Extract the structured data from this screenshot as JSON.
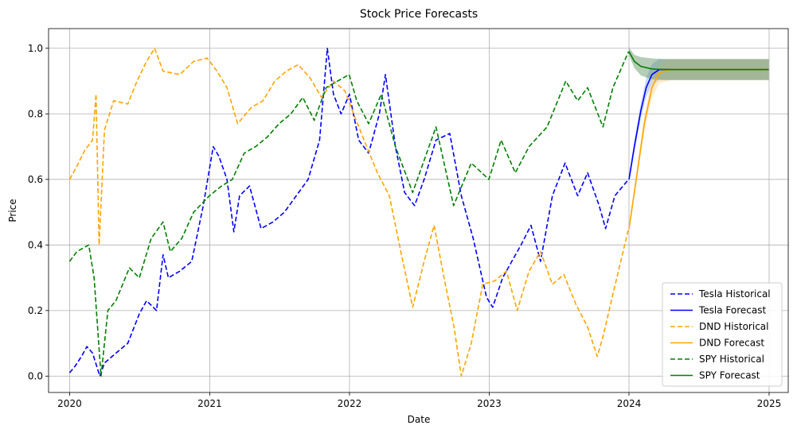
{
  "chart_data": {
    "type": "line",
    "title": "Stock Price Forecasts",
    "xlabel": "Date",
    "ylabel": "Price",
    "xlim": [
      "2019-11-07",
      "2025-02-20"
    ],
    "ylim": [
      -0.05,
      1.06
    ],
    "x_ticks": [
      "2020",
      "2021",
      "2022",
      "2023",
      "2024",
      "2025"
    ],
    "y_ticks": [
      "0.0",
      "0.2",
      "0.4",
      "0.6",
      "0.8",
      "1.0"
    ],
    "grid": true,
    "legend_position": "bottom-right",
    "series": [
      {
        "name": "Tesla Historical",
        "color": "#0000ff",
        "style": "dashed",
        "points": [
          [
            "2020-01-01",
            0.01
          ],
          [
            "2020-01-15",
            0.03
          ],
          [
            "2020-02-01",
            0.06
          ],
          [
            "2020-02-15",
            0.09
          ],
          [
            "2020-03-01",
            0.07
          ],
          [
            "2020-03-20",
            0.0
          ],
          [
            "2020-04-01",
            0.04
          ],
          [
            "2020-05-01",
            0.07
          ],
          [
            "2020-06-01",
            0.1
          ],
          [
            "2020-07-01",
            0.19
          ],
          [
            "2020-07-20",
            0.23
          ],
          [
            "2020-08-15",
            0.2
          ],
          [
            "2020-09-01",
            0.37
          ],
          [
            "2020-09-15",
            0.3
          ],
          [
            "2020-10-15",
            0.32
          ],
          [
            "2020-11-15",
            0.35
          ],
          [
            "2020-12-15",
            0.52
          ],
          [
            "2021-01-10",
            0.7
          ],
          [
            "2021-01-25",
            0.67
          ],
          [
            "2021-02-15",
            0.6
          ],
          [
            "2021-03-05",
            0.44
          ],
          [
            "2021-03-20",
            0.55
          ],
          [
            "2021-04-15",
            0.58
          ],
          [
            "2021-05-15",
            0.45
          ],
          [
            "2021-06-15",
            0.47
          ],
          [
            "2021-07-15",
            0.5
          ],
          [
            "2021-08-15",
            0.55
          ],
          [
            "2021-09-15",
            0.6
          ],
          [
            "2021-10-15",
            0.72
          ],
          [
            "2021-11-04",
            1.0
          ],
          [
            "2021-11-20",
            0.86
          ],
          [
            "2021-12-10",
            0.8
          ],
          [
            "2022-01-01",
            0.86
          ],
          [
            "2022-01-25",
            0.72
          ],
          [
            "2022-02-20",
            0.68
          ],
          [
            "2022-03-20",
            0.8
          ],
          [
            "2022-04-05",
            0.92
          ],
          [
            "2022-05-01",
            0.7
          ],
          [
            "2022-05-25",
            0.56
          ],
          [
            "2022-06-20",
            0.52
          ],
          [
            "2022-07-15",
            0.6
          ],
          [
            "2022-08-15",
            0.72
          ],
          [
            "2022-09-20",
            0.74
          ],
          [
            "2022-10-20",
            0.55
          ],
          [
            "2022-11-20",
            0.42
          ],
          [
            "2022-12-25",
            0.24
          ],
          [
            "2023-01-10",
            0.21
          ],
          [
            "2023-02-05",
            0.3
          ],
          [
            "2023-03-01",
            0.35
          ],
          [
            "2023-03-25",
            0.4
          ],
          [
            "2023-04-20",
            0.46
          ],
          [
            "2023-05-15",
            0.35
          ],
          [
            "2023-06-15",
            0.55
          ],
          [
            "2023-07-18",
            0.65
          ],
          [
            "2023-08-20",
            0.55
          ],
          [
            "2023-09-15",
            0.62
          ],
          [
            "2023-10-15",
            0.52
          ],
          [
            "2023-11-01",
            0.45
          ],
          [
            "2023-11-25",
            0.55
          ],
          [
            "2023-12-31",
            0.6
          ]
        ]
      },
      {
        "name": "Tesla Forecast",
        "color": "#0000ff",
        "style": "solid",
        "points": [
          [
            "2024-01-01",
            0.6
          ],
          [
            "2024-01-15",
            0.7
          ],
          [
            "2024-02-01",
            0.81
          ],
          [
            "2024-02-15",
            0.88
          ],
          [
            "2024-03-01",
            0.92
          ],
          [
            "2024-03-20",
            0.935
          ],
          [
            "2024-04-15",
            0.935
          ],
          [
            "2024-12-31",
            0.935
          ]
        ],
        "band_color": "#87aaf0"
      },
      {
        "name": "DND Historical",
        "color": "#ffa500",
        "style": "dashed",
        "points": [
          [
            "2020-01-01",
            0.6
          ],
          [
            "2020-01-20",
            0.64
          ],
          [
            "2020-02-10",
            0.69
          ],
          [
            "2020-03-01",
            0.72
          ],
          [
            "2020-03-10",
            0.86
          ],
          [
            "2020-03-18",
            0.4
          ],
          [
            "2020-04-01",
            0.75
          ],
          [
            "2020-04-25",
            0.84
          ],
          [
            "2020-06-01",
            0.83
          ],
          [
            "2020-06-25",
            0.9
          ],
          [
            "2020-07-20",
            0.96
          ],
          [
            "2020-08-10",
            1.0
          ],
          [
            "2020-09-01",
            0.93
          ],
          [
            "2020-10-15",
            0.92
          ],
          [
            "2020-11-20",
            0.96
          ],
          [
            "2020-12-25",
            0.97
          ],
          [
            "2021-01-20",
            0.93
          ],
          [
            "2021-02-15",
            0.88
          ],
          [
            "2021-03-15",
            0.77
          ],
          [
            "2021-04-20",
            0.82
          ],
          [
            "2021-05-20",
            0.84
          ],
          [
            "2021-06-20",
            0.9
          ],
          [
            "2021-07-20",
            0.93
          ],
          [
            "2021-08-20",
            0.95
          ],
          [
            "2021-09-20",
            0.91
          ],
          [
            "2021-10-20",
            0.85
          ],
          [
            "2021-11-20",
            0.9
          ],
          [
            "2021-12-20",
            0.87
          ],
          [
            "2022-01-15",
            0.79
          ],
          [
            "2022-02-15",
            0.7
          ],
          [
            "2022-03-15",
            0.62
          ],
          [
            "2022-04-15",
            0.55
          ],
          [
            "2022-05-15",
            0.38
          ],
          [
            "2022-06-15",
            0.21
          ],
          [
            "2022-07-15",
            0.35
          ],
          [
            "2022-08-10",
            0.46
          ],
          [
            "2022-09-05",
            0.3
          ],
          [
            "2022-10-01",
            0.15
          ],
          [
            "2022-10-20",
            0.0
          ],
          [
            "2022-11-15",
            0.1
          ],
          [
            "2022-12-15",
            0.28
          ],
          [
            "2023-01-15",
            0.29
          ],
          [
            "2023-02-15",
            0.32
          ],
          [
            "2023-03-15",
            0.2
          ],
          [
            "2023-04-15",
            0.32
          ],
          [
            "2023-05-15",
            0.38
          ],
          [
            "2023-06-15",
            0.28
          ],
          [
            "2023-07-15",
            0.31
          ],
          [
            "2023-08-15",
            0.22
          ],
          [
            "2023-09-15",
            0.15
          ],
          [
            "2023-10-10",
            0.06
          ],
          [
            "2023-10-25",
            0.12
          ],
          [
            "2023-11-20",
            0.25
          ],
          [
            "2023-12-31",
            0.45
          ]
        ]
      },
      {
        "name": "DND Forecast",
        "color": "#ffa500",
        "style": "solid",
        "points": [
          [
            "2024-01-01",
            0.45
          ],
          [
            "2024-01-20",
            0.6
          ],
          [
            "2024-02-10",
            0.77
          ],
          [
            "2024-03-01",
            0.88
          ],
          [
            "2024-03-20",
            0.925
          ],
          [
            "2024-04-20",
            0.935
          ],
          [
            "2024-12-31",
            0.935
          ]
        ],
        "band_color": "#fbd58e"
      },
      {
        "name": "SPY Historical",
        "color": "#008000",
        "style": "dashed",
        "points": [
          [
            "2020-01-01",
            0.35
          ],
          [
            "2020-01-20",
            0.38
          ],
          [
            "2020-02-20",
            0.4
          ],
          [
            "2020-03-05",
            0.3
          ],
          [
            "2020-03-23",
            0.0
          ],
          [
            "2020-04-10",
            0.2
          ],
          [
            "2020-05-01",
            0.23
          ],
          [
            "2020-06-05",
            0.33
          ],
          [
            "2020-07-01",
            0.3
          ],
          [
            "2020-08-01",
            0.42
          ],
          [
            "2020-09-01",
            0.47
          ],
          [
            "2020-09-20",
            0.38
          ],
          [
            "2020-10-20",
            0.42
          ],
          [
            "2020-11-20",
            0.5
          ],
          [
            "2020-12-31",
            0.55
          ],
          [
            "2021-02-01",
            0.58
          ],
          [
            "2021-03-01",
            0.6
          ],
          [
            "2021-04-01",
            0.68
          ],
          [
            "2021-05-01",
            0.7
          ],
          [
            "2021-06-01",
            0.73
          ],
          [
            "2021-07-01",
            0.77
          ],
          [
            "2021-08-01",
            0.8
          ],
          [
            "2021-09-01",
            0.85
          ],
          [
            "2021-10-01",
            0.78
          ],
          [
            "2021-11-01",
            0.88
          ],
          [
            "2021-12-31",
            0.92
          ],
          [
            "2022-01-20",
            0.84
          ],
          [
            "2022-02-20",
            0.77
          ],
          [
            "2022-03-25",
            0.86
          ],
          [
            "2022-05-01",
            0.7
          ],
          [
            "2022-06-15",
            0.56
          ],
          [
            "2022-08-15",
            0.76
          ],
          [
            "2022-09-30",
            0.52
          ],
          [
            "2022-11-15",
            0.65
          ],
          [
            "2022-12-31",
            0.6
          ],
          [
            "2023-02-01",
            0.72
          ],
          [
            "2023-03-10",
            0.62
          ],
          [
            "2023-04-15",
            0.7
          ],
          [
            "2023-06-01",
            0.76
          ],
          [
            "2023-07-20",
            0.9
          ],
          [
            "2023-08-20",
            0.84
          ],
          [
            "2023-09-15",
            0.88
          ],
          [
            "2023-10-25",
            0.76
          ],
          [
            "2023-11-20",
            0.88
          ],
          [
            "2023-12-31",
            0.99
          ]
        ]
      },
      {
        "name": "SPY Forecast",
        "color": "#008000",
        "style": "solid",
        "points": [
          [
            "2024-01-01",
            0.99
          ],
          [
            "2024-01-15",
            0.96
          ],
          [
            "2024-02-01",
            0.945
          ],
          [
            "2024-03-01",
            0.937
          ],
          [
            "2024-04-01",
            0.935
          ],
          [
            "2024-12-31",
            0.935
          ]
        ],
        "band_color": "#5a8f5a"
      }
    ]
  }
}
